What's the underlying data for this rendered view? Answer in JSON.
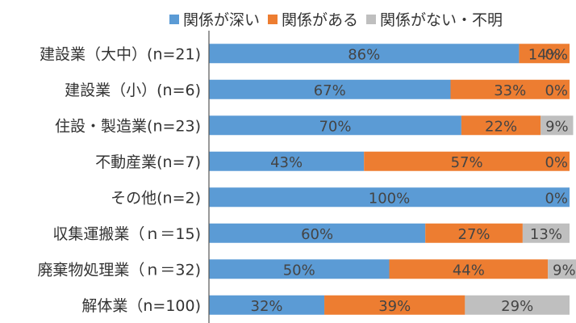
{
  "chart_data": {
    "type": "bar",
    "orientation": "horizontal",
    "stacked": "percent",
    "categories": [
      "建設業（大中）(n=21)",
      "建設業（小）(n=6)",
      "住設・製造業(n=23)",
      "不動産業(n=7)",
      "その他(n=2)",
      "収集運搬業（ｎ＝15)",
      "廃棄物処理業（ｎ＝32)",
      "解体業（n=100)"
    ],
    "series": [
      {
        "name": "関係が深い",
        "color": "#5b9bd5",
        "values": [
          86,
          67,
          70,
          43,
          100,
          60,
          50,
          32
        ]
      },
      {
        "name": "関係がある",
        "color": "#ed7d31",
        "values": [
          14,
          33,
          22,
          57,
          0,
          27,
          44,
          39
        ]
      },
      {
        "name": "関係がない・不明",
        "color": "#bfbfbf",
        "values": [
          0,
          0,
          9,
          0,
          0,
          13,
          9,
          29
        ]
      }
    ],
    "labels": [
      [
        "86%",
        "14%",
        "0%"
      ],
      [
        "67%",
        "33%",
        "0%"
      ],
      [
        "70%",
        "22%",
        "9%"
      ],
      [
        "43%",
        "57%",
        "0%"
      ],
      [
        "100%",
        "",
        "0%"
      ],
      [
        "60%",
        "27%",
        "13%"
      ],
      [
        "50%",
        "44%",
        "9%"
      ],
      [
        "32%",
        "39%",
        "29%"
      ]
    ],
    "xlim": [
      0,
      100
    ],
    "legend_position": "top",
    "grid": false
  }
}
